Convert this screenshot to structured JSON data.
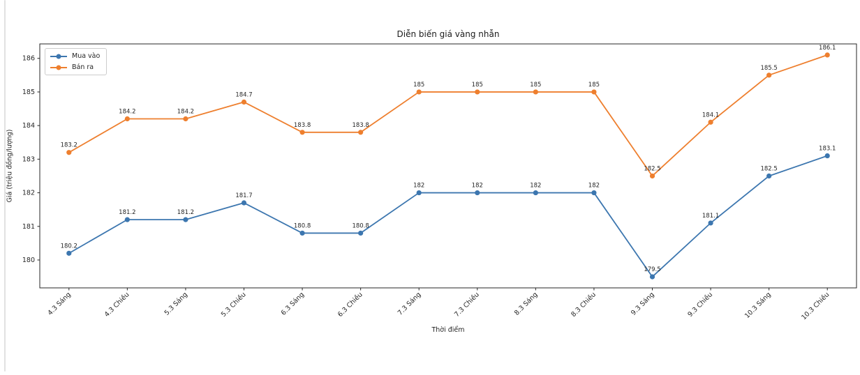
{
  "page": {
    "background": "#ffffff",
    "divider_color": "#e1e1e1"
  },
  "chart_data": {
    "type": "line",
    "title": "Diễn biến giá vàng nhẫn",
    "xlabel": "Thời điểm",
    "ylabel": "Giá (triệu đồng/lượng)",
    "categories": [
      "4.3 Sáng",
      "4.3 Chiều",
      "5.3 Sáng",
      "5.3 Chiều",
      "6.3 Sáng",
      "6.3 Chiều",
      "7.3 Sáng",
      "7.3 Chiều",
      "8.3 Sáng",
      "8.3 Chiều",
      "9.3 Sáng",
      "9.3 Chiều",
      "10.3 Sáng",
      "10.3 Chiều"
    ],
    "series": [
      {
        "name": "Mua vào",
        "color": "#3c76af",
        "values": [
          180.2,
          181.2,
          181.2,
          181.7,
          180.8,
          180.8,
          182,
          182,
          182,
          182,
          179.5,
          181.1,
          182.5,
          183.1
        ]
      },
      {
        "name": "Bán ra",
        "color": "#ee7f2e",
        "values": [
          183.2,
          184.2,
          184.2,
          184.7,
          183.8,
          183.8,
          185,
          185,
          185,
          185,
          182.5,
          184.1,
          185.5,
          186.1
        ]
      }
    ],
    "yticks": [
      180,
      181,
      182,
      183,
      184,
      185,
      186
    ],
    "ylim": [
      179.17,
      186.43
    ],
    "xlim": [
      -0.5,
      13.5
    ],
    "grid": false,
    "legend_position": "upper-left",
    "marker": "circle",
    "data_labels": true,
    "frame_color": "#262626",
    "text_color": "#262626"
  }
}
